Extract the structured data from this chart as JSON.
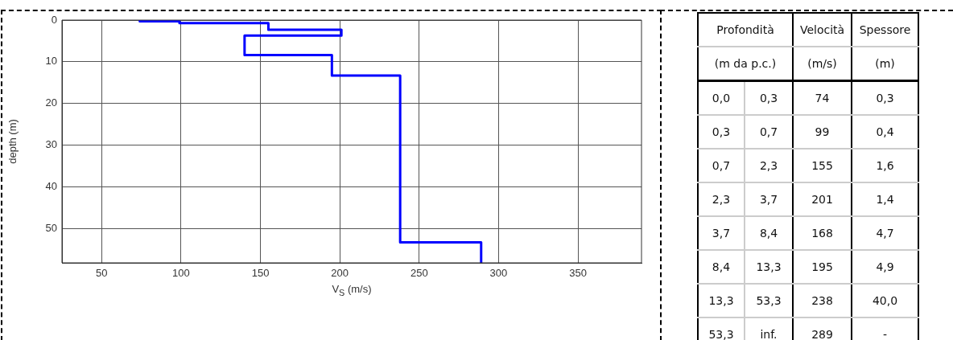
{
  "chart_data": [
    {
      "type": "line",
      "xlabel": "V$_{S}$ (m/s)",
      "ylabel": "depth (m)",
      "xlim": [
        25,
        390
      ],
      "ylim": [
        58.2,
        0
      ],
      "xticks": [
        50,
        100,
        150,
        200,
        250,
        300,
        350
      ],
      "yticks": [
        0,
        10,
        20,
        30,
        40,
        50
      ],
      "grid": true,
      "marker": "none",
      "line_style": "solid",
      "series": [
        {
          "color": "#0000ff",
          "x": [
            74,
            74,
            99,
            99,
            155,
            155,
            201,
            201,
            140,
            140,
            195,
            195,
            238,
            238,
            289,
            289
          ],
          "values": [
            0,
            0.3,
            0.3,
            0.7,
            0.7,
            2.3,
            2.3,
            3.7,
            3.7,
            8.4,
            8.4,
            13.3,
            13.3,
            53.3,
            53.3,
            58.2
          ]
        }
      ]
    },
    {
      "type": "other",
      "annotations": [
        "Profondità",
        "Velocità",
        "Spessore",
        "(m da p.c.)",
        "(m/s)",
        "(m)",
        "0,0",
        "0,3",
        "74",
        "0,3",
        "0,3",
        "0,7",
        "99",
        "0,4",
        "0,7",
        "2,3",
        "155",
        "1,6",
        "2,3",
        "3,7",
        "201",
        "1,4",
        "3,7",
        "8,4",
        "168",
        "4,7",
        "8,4",
        "13,3",
        "195",
        "4,9",
        "13,3",
        "53,3",
        "238",
        "40,0",
        "53,3",
        "inf.",
        "289",
        "-"
      ]
    }
  ]
}
